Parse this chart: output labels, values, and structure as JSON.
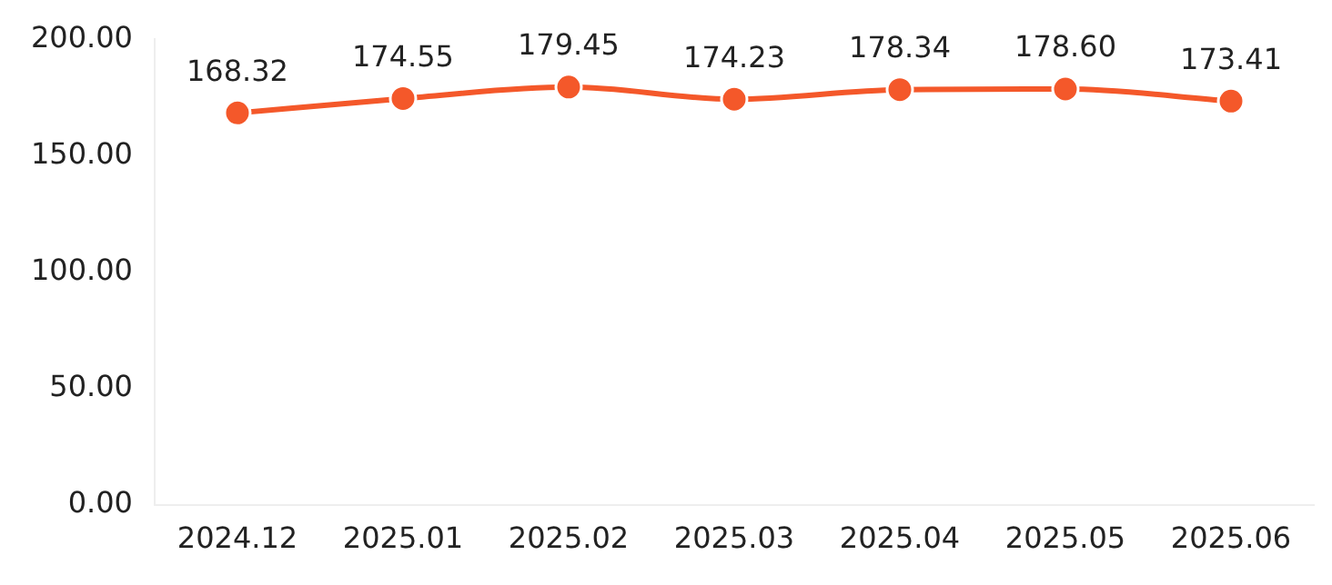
{
  "chart_data": {
    "type": "line",
    "categories": [
      "2024.12",
      "2025.01",
      "2025.02",
      "2025.03",
      "2025.04",
      "2025.05",
      "2025.06"
    ],
    "series": [
      {
        "color": "#f4582a",
        "values": [
          168.32,
          174.55,
          179.45,
          174.23,
          178.34,
          178.6,
          173.41
        ]
      }
    ],
    "ylim": [
      0,
      200
    ],
    "yticks": [
      {
        "value": 0,
        "label": "0.00"
      },
      {
        "value": 50,
        "label": "50.00"
      },
      {
        "value": 100,
        "label": "100.00"
      },
      {
        "value": 150,
        "label": "150.00"
      },
      {
        "value": 200,
        "label": "200.00"
      }
    ],
    "value_labels": [
      "168.32",
      "174.55",
      "179.45",
      "174.23",
      "178.34",
      "178.60",
      "173.41"
    ],
    "grid": false,
    "legend": false,
    "marker": "circle",
    "line_style": "solid"
  }
}
